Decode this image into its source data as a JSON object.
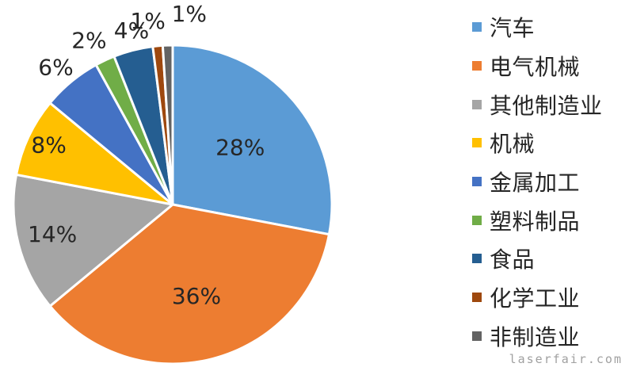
{
  "chart_data": {
    "type": "pie",
    "categories": [
      "汽车",
      "电气机械",
      "其他制造业",
      "机械",
      "金属加工",
      "塑料制品",
      "食品",
      "化学工业",
      "非制造业"
    ],
    "values": [
      28,
      36,
      14,
      8,
      6,
      2,
      4,
      1,
      1
    ],
    "labels": [
      "28%",
      "36%",
      "14%",
      "8%",
      "6%",
      "2%",
      "4%",
      "1%",
      "1%"
    ],
    "colors": [
      "#5B9BD5",
      "#ED7D31",
      "#A5A5A5",
      "#FFC000",
      "#4472C4",
      "#70AD47",
      "#255E91",
      "#9E480E",
      "#636363"
    ],
    "legend_position": "right",
    "start_angle": "12 o'clock",
    "direction": "clockwise"
  },
  "watermark": "laserfair.com"
}
